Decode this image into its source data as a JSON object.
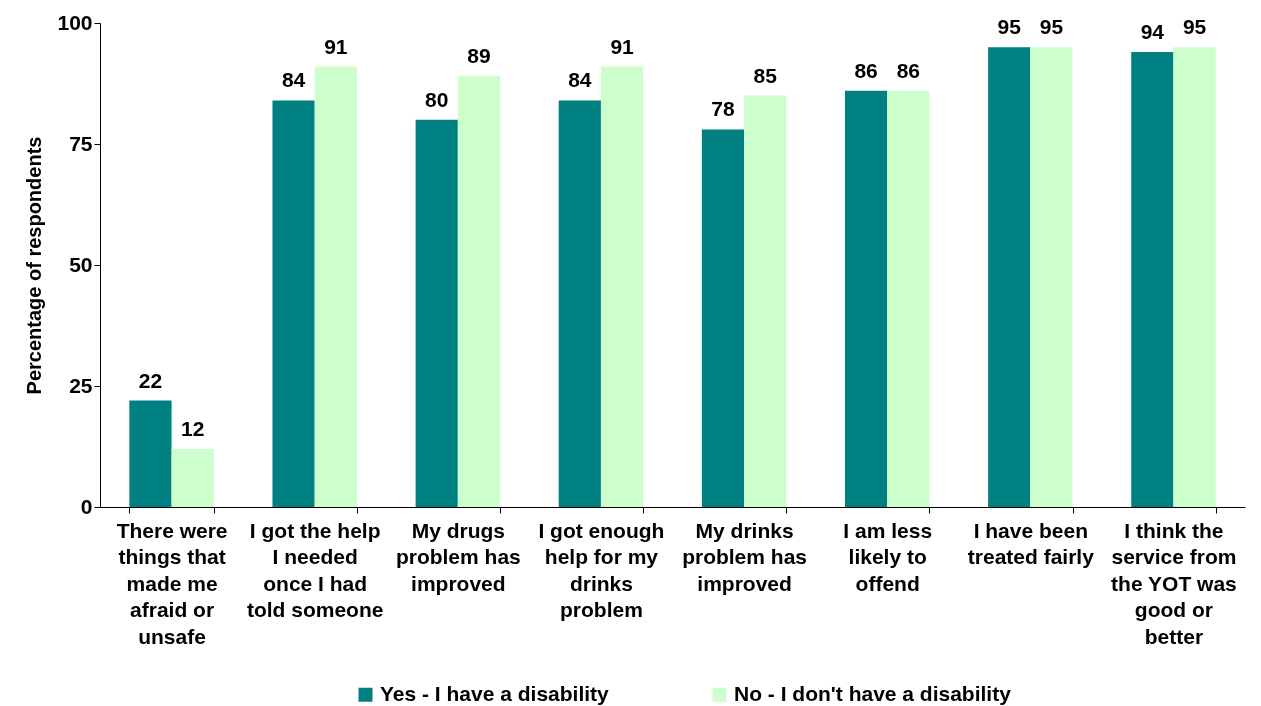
{
  "chart_data": {
    "type": "bar",
    "ylabel": "Percentage of respondents",
    "categories": [
      "There were\nthings that\nmade me\nafraid or\nunsafe",
      "I got the help\nI needed\nonce I had\ntold someone",
      "My drugs\nproblem has\nimproved",
      "I got enough\nhelp for my\ndrinks\nproblem",
      "My drinks\nproblem has\nimproved",
      "I am less\nlikely to\noffend",
      "I have been\ntreated fairly",
      "I think the\nservice from\nthe YOT was\ngood or\nbetter"
    ],
    "series": [
      {
        "name": "Yes - I have a disability",
        "color": "#008080",
        "values": [
          22,
          84,
          80,
          84,
          78,
          86,
          95,
          94
        ]
      },
      {
        "name": "No - I don't have a disability",
        "color": "#ccffcc",
        "values": [
          12,
          91,
          89,
          91,
          85,
          86,
          95,
          95
        ]
      }
    ],
    "ylim": [
      0,
      100
    ],
    "yticks": [
      0,
      25,
      50,
      75,
      100
    ],
    "data_labels": true,
    "legend": "bottom"
  }
}
